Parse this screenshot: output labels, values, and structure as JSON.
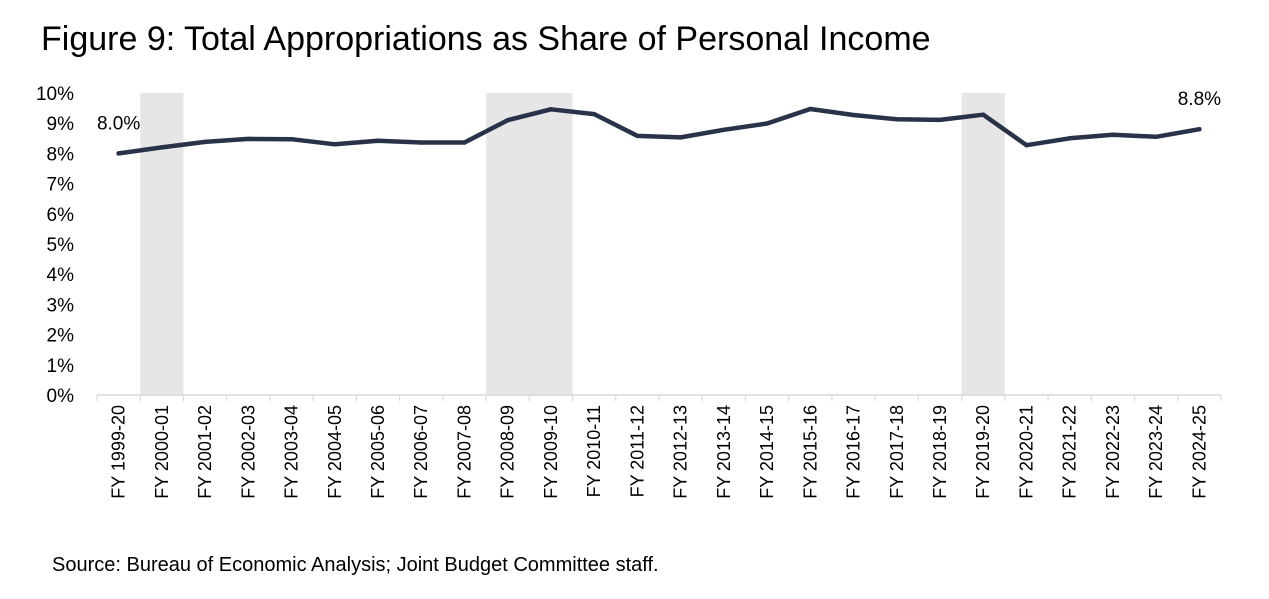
{
  "title": "Figure 9: Total Appropriations as Share of Personal Income",
  "source": "Source: Bureau of Economic Analysis; Joint Budget Committee staff.",
  "colors": {
    "line": "#283249",
    "shade": "#e6e6e6",
    "axis": "#d9d9d9"
  },
  "chart_data": {
    "type": "line",
    "title": "Figure 9: Total Appropriations as Share of Personal Income",
    "xlabel": "",
    "ylabel": "",
    "ylim": [
      0,
      10
    ],
    "ytick_labels": [
      "0%",
      "1%",
      "2%",
      "3%",
      "4%",
      "5%",
      "6%",
      "7%",
      "8%",
      "9%",
      "10%"
    ],
    "grid": false,
    "categories": [
      "FY 1999-20",
      "FY 2000-01",
      "FY 2001-02",
      "FY 2002-03",
      "FY 2003-04",
      "FY 2004-05",
      "FY 2005-06",
      "FY 2006-07",
      "FY 2007-08",
      "FY 2008-09",
      "FY 2009-10",
      "FY 2010-11",
      "FY 2011-12",
      "FY 2012-13",
      "FY 2013-14",
      "FY 2014-15",
      "FY 2015-16",
      "FY 2016-17",
      "FY 2017-18",
      "FY 2018-19",
      "FY 2019-20",
      "FY 2020-21",
      "FY 2021-22",
      "FY 2022-23",
      "FY 2023-24",
      "FY 2024-25"
    ],
    "series": [
      {
        "name": "Total Appropriations as Share of Personal Income",
        "values": [
          8.0,
          8.2,
          8.38,
          8.48,
          8.47,
          8.3,
          8.42,
          8.36,
          8.36,
          9.1,
          9.46,
          9.3,
          8.58,
          8.53,
          8.78,
          8.99,
          9.47,
          9.27,
          9.13,
          9.11,
          9.28,
          8.27,
          8.5,
          8.62,
          8.55,
          8.8
        ]
      }
    ],
    "shaded_periods": [
      {
        "from": "FY 2000-01",
        "to": "FY 2000-01"
      },
      {
        "from": "FY 2008-09",
        "to": "FY 2009-10"
      },
      {
        "from": "FY 2019-20",
        "to": "FY 2019-20"
      }
    ],
    "data_labels": [
      {
        "category": "FY 1999-20",
        "text": "8.0%"
      },
      {
        "category": "FY 2024-25",
        "text": "8.8%"
      }
    ]
  }
}
